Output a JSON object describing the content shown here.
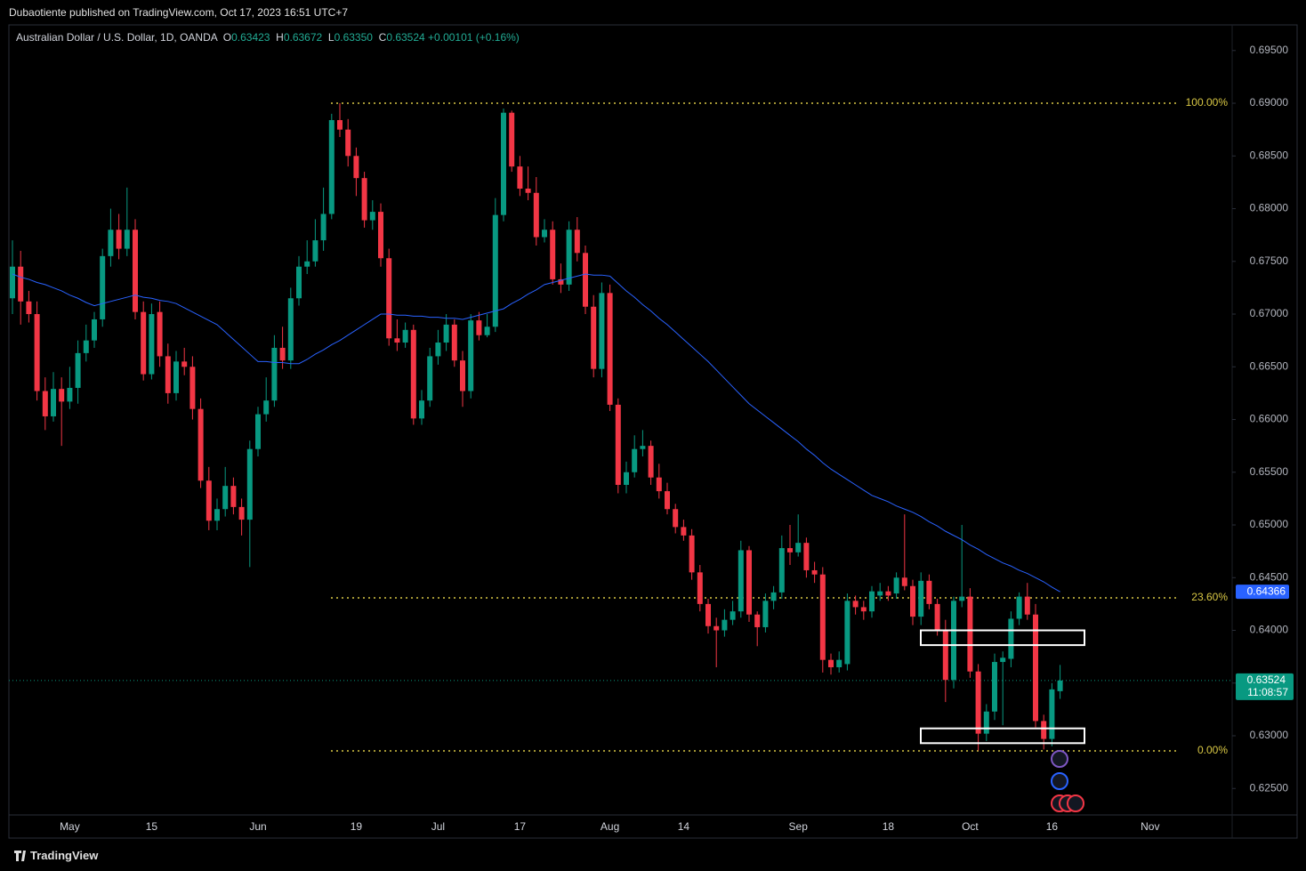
{
  "header": {
    "publisher": "Dubaotiente published on TradingView.com, Oct 17, 2023 16:51 UTC+7",
    "symbol": "Australian Dollar / U.S. Dollar, 1D, OANDA",
    "o_label": "O",
    "o": "0.63423",
    "h_label": "H",
    "h": "0.63672",
    "l_label": "L",
    "l": "0.63350",
    "c_label": "C",
    "c": "0.63524",
    "change": "+0.00101 (+0.16%)"
  },
  "footer": {
    "brand": "TradingView"
  },
  "chart_data": {
    "type": "candlestick",
    "categories": [
      null,
      null,
      null,
      null,
      null,
      null,
      null,
      "May",
      null,
      null,
      null,
      null,
      null,
      null,
      null,
      null,
      null,
      "15",
      null,
      null,
      null,
      null,
      null,
      null,
      null,
      null,
      null,
      null,
      null,
      null,
      "Jun",
      null,
      null,
      null,
      null,
      null,
      null,
      null,
      null,
      null,
      null,
      null,
      "19",
      null,
      null,
      null,
      null,
      null,
      null,
      null,
      null,
      null,
      "Jul",
      null,
      null,
      null,
      null,
      null,
      null,
      null,
      null,
      null,
      "17",
      null,
      null,
      null,
      null,
      null,
      null,
      null,
      null,
      null,
      null,
      "Aug",
      null,
      null,
      null,
      null,
      null,
      null,
      null,
      null,
      "14",
      null,
      null,
      null,
      null,
      null,
      null,
      null,
      null,
      null,
      null,
      null,
      null,
      null,
      "Sep",
      null,
      null,
      null,
      null,
      null,
      null,
      null,
      null,
      null,
      null,
      "18",
      null,
      null,
      null,
      null,
      null,
      null,
      null,
      null,
      null,
      "Oct",
      null,
      null,
      null,
      null,
      null,
      null,
      null,
      null,
      null,
      "16",
      null,
      null,
      null,
      null,
      null,
      null,
      null,
      null,
      null,
      null,
      null,
      "Nov"
    ],
    "open": [
      0.6715,
      0.6745,
      0.6712,
      0.67,
      0.6627,
      0.6603,
      0.6629,
      0.6617,
      0.663,
      0.6663,
      0.6675,
      0.6695,
      0.6755,
      0.678,
      0.6762,
      0.678,
      0.6702,
      0.6643,
      0.6702,
      0.666,
      0.6625,
      0.6655,
      0.665,
      0.661,
      0.6542,
      0.6504,
      0.6515,
      0.6537,
      0.6517,
      0.6505,
      0.6572,
      0.6605,
      0.6618,
      0.6668,
      0.6656,
      0.6715,
      0.6745,
      0.675,
      0.677,
      0.6795,
      0.6884,
      0.6875,
      0.685,
      0.6829,
      0.6789,
      0.6797,
      0.6753,
      0.6677,
      0.6673,
      0.6685,
      0.6601,
      0.6618,
      0.666,
      0.6673,
      0.669,
      0.6656,
      0.6627,
      0.6694,
      0.668,
      0.6688,
      0.6794,
      0.6891,
      0.684,
      0.6819,
      0.6815,
      0.6773,
      0.678,
      0.6733,
      0.6728,
      0.678,
      0.6758,
      0.6707,
      0.6648,
      0.672,
      0.6614,
      0.6538,
      0.655,
      0.6572,
      0.6575,
      0.6545,
      0.6532,
      0.6515,
      0.6498,
      0.649,
      0.6455,
      0.6425,
      0.6404,
      0.64,
      0.641,
      0.6418,
      0.6476,
      0.6415,
      0.6403,
      0.6428,
      0.6436,
      0.6478,
      0.6474,
      0.6483,
      0.6457,
      0.6453,
      0.6372,
      0.6365,
      0.6368,
      0.6428,
      0.6422,
      0.6418,
      0.6433,
      0.6437,
      0.6435,
      0.645,
      0.6442,
      0.6413,
      0.6447,
      0.6425,
      0.64,
      0.6353,
      0.6428,
      0.6432,
      0.6361,
      0.6302,
      0.6323,
      0.637,
      0.6373,
      0.6411,
      0.6432,
      0.6415,
      0.6314,
      0.6297,
      0.63423,
      null,
      null,
      null,
      null,
      null,
      null,
      null,
      null,
      null,
      null,
      null
    ],
    "high": [
      0.677,
      0.676,
      0.6722,
      0.6712,
      0.664,
      0.6645,
      0.664,
      0.665,
      0.6675,
      0.669,
      0.6702,
      0.6762,
      0.68,
      0.6795,
      0.682,
      0.679,
      0.6712,
      0.671,
      0.6712,
      0.6672,
      0.6665,
      0.6668,
      0.666,
      0.662,
      0.6555,
      0.6525,
      0.6555,
      0.6545,
      0.6525,
      0.658,
      0.6612,
      0.664,
      0.668,
      0.6688,
      0.6725,
      0.6755,
      0.677,
      0.679,
      0.682,
      0.689,
      0.69,
      0.6885,
      0.6858,
      0.6835,
      0.6808,
      0.6805,
      0.6762,
      0.6695,
      0.6692,
      0.669,
      0.6628,
      0.6668,
      0.6685,
      0.67,
      0.6695,
      0.6665,
      0.67,
      0.6702,
      0.67,
      0.681,
      0.6895,
      0.6893,
      0.685,
      0.684,
      0.683,
      0.679,
      0.6788,
      0.6748,
      0.6788,
      0.6792,
      0.6765,
      0.6718,
      0.673,
      0.6728,
      0.662,
      0.656,
      0.6585,
      0.659,
      0.658,
      0.6558,
      0.654,
      0.652,
      0.6505,
      0.6496,
      0.6462,
      0.643,
      0.6412,
      0.642,
      0.6428,
      0.6485,
      0.648,
      0.6418,
      0.6435,
      0.6442,
      0.649,
      0.65,
      0.651,
      0.6488,
      0.6465,
      0.646,
      0.6378,
      0.638,
      0.6435,
      0.6433,
      0.6428,
      0.6442,
      0.6445,
      0.6442,
      0.6455,
      0.651,
      0.6448,
      0.6455,
      0.6453,
      0.643,
      0.641,
      0.6432,
      0.65,
      0.644,
      0.6368,
      0.633,
      0.6378,
      0.638,
      0.6418,
      0.6436,
      0.6445,
      0.6425,
      0.632,
      0.635,
      0.63672,
      null,
      null,
      null,
      null,
      null,
      null,
      null,
      null,
      null,
      null,
      null
    ],
    "low": [
      0.67,
      0.669,
      0.6692,
      0.6618,
      0.659,
      0.6598,
      0.6575,
      0.661,
      0.6615,
      0.6655,
      0.6668,
      0.6688,
      0.6745,
      0.6752,
      0.6755,
      0.6695,
      0.6637,
      0.6638,
      0.665,
      0.6615,
      0.6618,
      0.6642,
      0.66,
      0.6535,
      0.6495,
      0.6495,
      0.6508,
      0.651,
      0.649,
      0.646,
      0.6565,
      0.6598,
      0.6612,
      0.6648,
      0.6648,
      0.6708,
      0.6738,
      0.6745,
      0.676,
      0.679,
      0.6868,
      0.684,
      0.6812,
      0.6782,
      0.678,
      0.6745,
      0.667,
      0.6665,
      0.6668,
      0.6595,
      0.6595,
      0.6612,
      0.6652,
      0.6665,
      0.665,
      0.6612,
      0.662,
      0.6675,
      0.6678,
      0.6683,
      0.6788,
      0.6835,
      0.6812,
      0.6808,
      0.6765,
      0.6768,
      0.6728,
      0.672,
      0.6722,
      0.675,
      0.67,
      0.664,
      0.664,
      0.6608,
      0.653,
      0.653,
      0.6545,
      0.6565,
      0.6538,
      0.6525,
      0.651,
      0.6492,
      0.6485,
      0.6448,
      0.6418,
      0.6397,
      0.6365,
      0.6394,
      0.6405,
      0.6412,
      0.6408,
      0.6385,
      0.6398,
      0.642,
      0.643,
      0.6462,
      0.647,
      0.645,
      0.6445,
      0.636,
      0.6358,
      0.636,
      0.6362,
      0.6415,
      0.641,
      0.6412,
      0.6428,
      0.6428,
      0.643,
      0.6438,
      0.6405,
      0.6405,
      0.642,
      0.6395,
      0.6332,
      0.6345,
      0.6422,
      0.6355,
      0.6286,
      0.6295,
      0.6315,
      0.631,
      0.6365,
      0.6405,
      0.641,
      0.6308,
      0.6287,
      0.629,
      0.6335,
      null,
      null,
      null,
      null,
      null,
      null,
      null,
      null,
      null,
      null,
      null
    ],
    "close": [
      0.6745,
      0.6712,
      0.67,
      0.6627,
      0.6603,
      0.6629,
      0.6617,
      0.663,
      0.6663,
      0.6675,
      0.6695,
      0.6755,
      0.678,
      0.6762,
      0.678,
      0.6702,
      0.6643,
      0.67,
      0.666,
      0.6625,
      0.6655,
      0.665,
      0.661,
      0.6542,
      0.6504,
      0.6515,
      0.6537,
      0.6517,
      0.6505,
      0.6572,
      0.6605,
      0.6618,
      0.6668,
      0.6656,
      0.6715,
      0.6745,
      0.675,
      0.677,
      0.6795,
      0.6884,
      0.6875,
      0.685,
      0.6829,
      0.6789,
      0.6797,
      0.6753,
      0.6677,
      0.6673,
      0.6685,
      0.6601,
      0.6618,
      0.666,
      0.6673,
      0.669,
      0.6656,
      0.6627,
      0.6694,
      0.668,
      0.6688,
      0.6794,
      0.6891,
      0.684,
      0.6819,
      0.6815,
      0.6773,
      0.678,
      0.6733,
      0.6728,
      0.678,
      0.6758,
      0.6707,
      0.6648,
      0.672,
      0.6614,
      0.6538,
      0.655,
      0.6572,
      0.6575,
      0.6545,
      0.6532,
      0.6515,
      0.6498,
      0.649,
      0.6455,
      0.6425,
      0.6404,
      0.64,
      0.641,
      0.6418,
      0.6476,
      0.6415,
      0.6403,
      0.6428,
      0.6436,
      0.6478,
      0.6474,
      0.6483,
      0.6457,
      0.6453,
      0.6372,
      0.6365,
      0.6372,
      0.6428,
      0.6422,
      0.6418,
      0.6437,
      0.6437,
      0.6433,
      0.645,
      0.6442,
      0.6413,
      0.6447,
      0.6425,
      0.64,
      0.6353,
      0.6428,
      0.6432,
      0.6361,
      0.6302,
      0.6323,
      0.637,
      0.6374,
      0.6411,
      0.6432,
      0.6415,
      0.6314,
      0.6297,
      0.6344,
      0.63524,
      null,
      null,
      null,
      null,
      null,
      null,
      null,
      null,
      null,
      null,
      null
    ],
    "up_color": "#089981",
    "down_color": "#f23645",
    "ma": {
      "color": "#2962ff",
      "values": [
        0.6738,
        0.6735,
        0.6733,
        0.673,
        0.6728,
        0.6725,
        0.6722,
        0.6718,
        0.6715,
        0.6711,
        0.6708,
        0.671,
        0.6712,
        0.6714,
        0.6716,
        0.6718,
        0.6716,
        0.6715,
        0.6713,
        0.6712,
        0.671,
        0.6706,
        0.6702,
        0.6698,
        0.6694,
        0.669,
        0.6683,
        0.6676,
        0.6669,
        0.6662,
        0.6655,
        0.6655,
        0.6654,
        0.6654,
        0.6653,
        0.6653,
        0.6657,
        0.6662,
        0.6666,
        0.6671,
        0.6675,
        0.668,
        0.6685,
        0.669,
        0.6695,
        0.67,
        0.67,
        0.6699,
        0.6699,
        0.6698,
        0.6698,
        0.6697,
        0.6697,
        0.6696,
        0.6696,
        0.6695,
        0.6697,
        0.6699,
        0.6701,
        0.6703,
        0.6705,
        0.671,
        0.6714,
        0.6719,
        0.6723,
        0.6728,
        0.673,
        0.6732,
        0.6734,
        0.6736,
        0.6738,
        0.6737,
        0.6737,
        0.6736,
        0.6729,
        0.6722,
        0.6716,
        0.6709,
        0.6703,
        0.6696,
        0.669,
        0.6683,
        0.6676,
        0.6669,
        0.6662,
        0.6655,
        0.6647,
        0.6639,
        0.6631,
        0.6623,
        0.6615,
        0.6609,
        0.6603,
        0.6597,
        0.6591,
        0.6585,
        0.6579,
        0.6572,
        0.6566,
        0.6559,
        0.6553,
        0.6548,
        0.6543,
        0.6538,
        0.6533,
        0.6528,
        0.6525,
        0.6522,
        0.6518,
        0.6515,
        0.6512,
        0.6508,
        0.6503,
        0.6499,
        0.6494,
        0.649,
        0.6486,
        0.6481,
        0.6477,
        0.6472,
        0.6468,
        0.6464,
        0.6461,
        0.6457,
        0.6454,
        0.645,
        0.6446,
        0.6441,
        0.64366,
        null,
        null,
        null,
        null,
        null,
        null,
        null,
        null,
        null,
        null,
        null
      ]
    },
    "ylim": [
      0.62249,
      0.69743
    ],
    "yticks": [
      {
        "value": 0.625,
        "label": "0.62500"
      },
      {
        "value": 0.63,
        "label": "0.63000"
      },
      {
        "value": 0.635,
        "label": "0.63500"
      },
      {
        "value": 0.64,
        "label": "0.64000"
      },
      {
        "value": 0.645,
        "label": "0.64500"
      },
      {
        "value": 0.65,
        "label": "0.65000"
      },
      {
        "value": 0.655,
        "label": "0.65500"
      },
      {
        "value": 0.66,
        "label": "0.66000"
      },
      {
        "value": 0.665,
        "label": "0.66500"
      },
      {
        "value": 0.67,
        "label": "0.67000"
      },
      {
        "value": 0.675,
        "label": "0.67500"
      },
      {
        "value": 0.68,
        "label": "0.68000"
      },
      {
        "value": 0.685,
        "label": "0.68500"
      },
      {
        "value": 0.69,
        "label": "0.69000"
      },
      {
        "value": 0.695,
        "label": "0.69500"
      }
    ],
    "grid": false,
    "fib_color": "#d9c845",
    "fib_levels": [
      {
        "value": 0.69,
        "label": "100.00%"
      },
      {
        "value": 0.64308,
        "label": "23.60%"
      },
      {
        "value": 0.62857,
        "label": "0.00%"
      }
    ],
    "zones": [
      {
        "top": 0.64,
        "bottom": 0.6386
      },
      {
        "top": 0.6307,
        "bottom": 0.6293
      }
    ],
    "countdown": "11:08:57"
  }
}
